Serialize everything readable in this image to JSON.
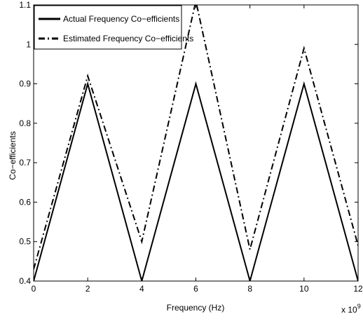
{
  "chart_data": {
    "type": "line",
    "title": "",
    "xlabel": "Frequency (Hz)",
    "ylabel": "Co−efficients",
    "x_multiplier_label": "x 10",
    "x_multiplier_exp": "9",
    "xlim": [
      0,
      12
    ],
    "ylim": [
      0.4,
      1.1
    ],
    "x_ticks": [
      0,
      2,
      4,
      6,
      8,
      10,
      12
    ],
    "y_ticks": [
      0.4,
      0.5,
      0.6,
      0.7,
      0.8,
      0.9,
      1,
      1.1
    ],
    "grid": false,
    "legend_position": "top-left",
    "series": [
      {
        "name": "Actual Frequency Co−efficients",
        "style": "solid",
        "color": "#000000",
        "x": [
          0,
          2,
          4,
          6,
          8,
          10,
          12
        ],
        "y": [
          0.4,
          0.9,
          0.4,
          0.9,
          0.4,
          0.9,
          0.4
        ]
      },
      {
        "name": "Estimated Frequency Co−efficients",
        "style": "dashdot",
        "color": "#000000",
        "x": [
          0,
          2,
          4,
          6,
          8,
          10,
          12
        ],
        "y": [
          0.43,
          0.92,
          0.5,
          1.11,
          0.48,
          0.99,
          0.49
        ]
      }
    ]
  }
}
